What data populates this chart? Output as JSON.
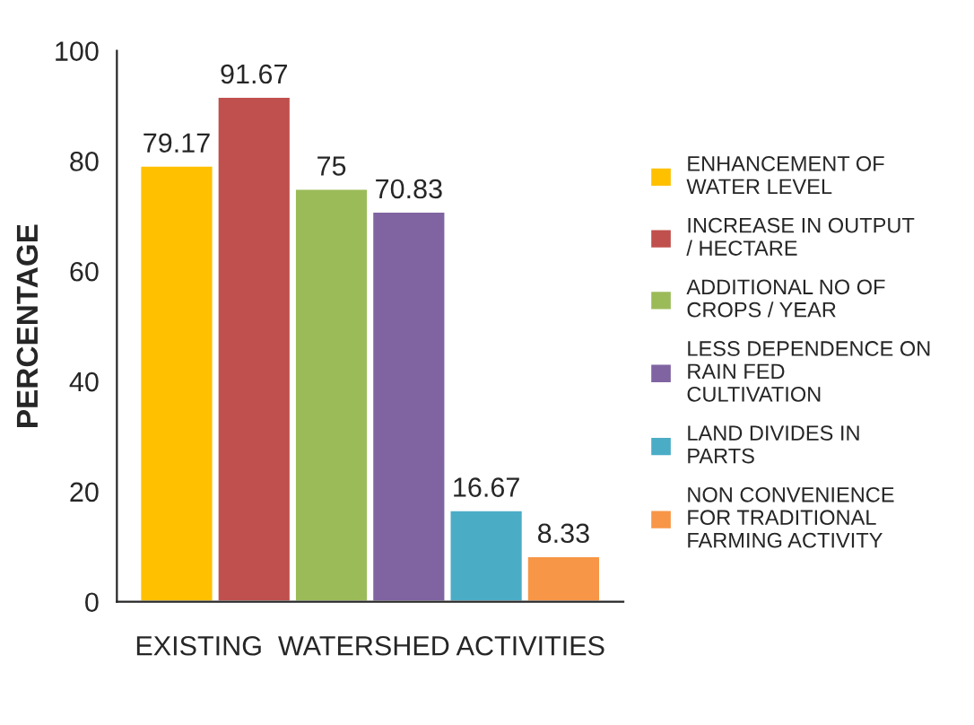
{
  "chart_data": {
    "type": "bar",
    "xlabel": "EXISTING  WATERSHED ACTIVITIES",
    "ylabel": "PERCENTAGE",
    "categories": [
      null,
      null,
      null,
      null,
      null,
      null
    ],
    "series": [
      {
        "name": "ENHANCEMENT OF WATER LEVEL",
        "color": "#ffc000",
        "values": [
          79.17,
          null,
          null,
          null,
          null,
          null
        ]
      },
      {
        "name": "INCREASE IN OUTPUT / HECTARE",
        "color": "#c0504d",
        "values": [
          null,
          91.67,
          null,
          null,
          null,
          null
        ]
      },
      {
        "name": "ADDITIONAL NO OF CROPS / YEAR",
        "color": "#9bbb59",
        "values": [
          null,
          null,
          75,
          null,
          null,
          null
        ]
      },
      {
        "name": "LESS DEPENDENCE ON RAIN FED CULTIVATION",
        "color": "#8064a2",
        "values": [
          null,
          null,
          null,
          70.83,
          null,
          null
        ]
      },
      {
        "name": "LAND DIVIDES IN PARTS",
        "color": "#4bacc6",
        "values": [
          null,
          null,
          null,
          null,
          16.67,
          null
        ]
      },
      {
        "name": "NON CONVENIENCE FOR TRADITIONAL FARMING ACTIVITY",
        "color": "#f79646",
        "values": [
          null,
          null,
          null,
          null,
          null,
          8.33
        ]
      }
    ],
    "ylim": [
      0,
      100
    ],
    "yticks": [
      0,
      20,
      40,
      60,
      80,
      100
    ],
    "grid": false,
    "data_labels": true,
    "legend": "right"
  }
}
